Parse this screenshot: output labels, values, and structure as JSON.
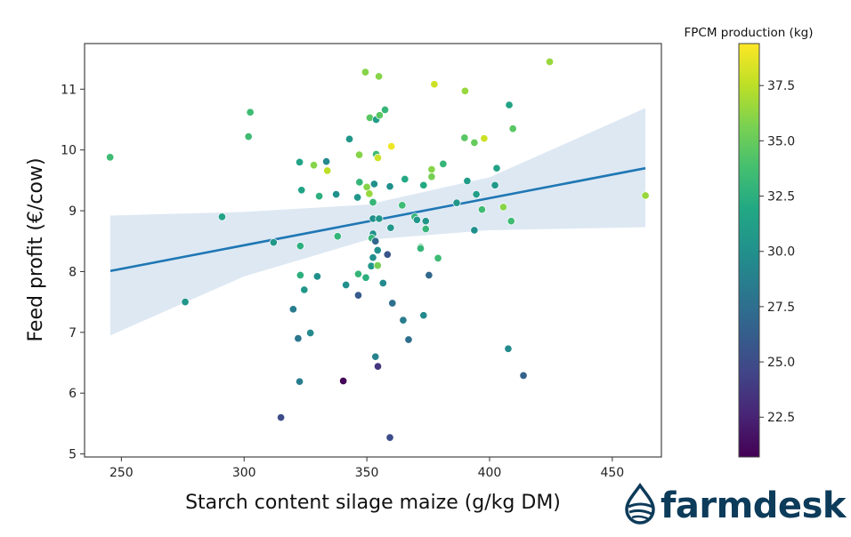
{
  "chart_data": {
    "type": "scatter",
    "title": "",
    "xlabel": "Starch content silage maize (g/kg DM)",
    "ylabel": "Feed profit (€/cow)",
    "xlim": [
      235,
      470
    ],
    "ylim": [
      4.95,
      11.75
    ],
    "x_ticks": [
      250,
      300,
      350,
      400,
      450
    ],
    "x_tick_labels": [
      "250",
      "300",
      "350",
      "400",
      "450"
    ],
    "y_ticks": [
      5,
      6,
      7,
      8,
      9,
      10,
      11
    ],
    "y_tick_labels": [
      "5",
      "6",
      "7",
      "8",
      "9",
      "10",
      "11"
    ],
    "grid": false,
    "colorbar": {
      "label": "FPCM production (kg)",
      "colormap": "viridis",
      "range": [
        20.7,
        39.4
      ],
      "ticks": [
        22.5,
        25.0,
        27.5,
        30.0,
        32.5,
        35.0,
        37.5
      ],
      "tick_labels": [
        "22.5",
        "25.0",
        "27.5",
        "30.0",
        "32.5",
        "35.0",
        "37.5"
      ]
    },
    "regression": {
      "color": "#1f77b4",
      "ci_color": "#dde8f3",
      "x": [
        245.5,
        463.5
      ],
      "y": [
        8.01,
        9.7
      ],
      "ci_x": [
        245.5,
        300,
        350,
        400,
        463.5
      ],
      "ci_upper": [
        8.92,
        8.98,
        9.1,
        9.55,
        10.69
      ],
      "ci_lower": [
        6.95,
        7.92,
        8.52,
        8.68,
        8.73
      ]
    },
    "points": [
      {
        "x": 245.4,
        "y": 9.88,
        "fpcm": 33.5
      },
      {
        "x": 276.0,
        "y": 7.5,
        "fpcm": 30.5
      },
      {
        "x": 291.0,
        "y": 8.9,
        "fpcm": 31.5
      },
      {
        "x": 302.5,
        "y": 10.62,
        "fpcm": 33.5
      },
      {
        "x": 301.8,
        "y": 10.22,
        "fpcm": 33.5
      },
      {
        "x": 312.0,
        "y": 8.48,
        "fpcm": 30.5
      },
      {
        "x": 315.0,
        "y": 5.6,
        "fpcm": 25.0
      },
      {
        "x": 320.0,
        "y": 7.38,
        "fpcm": 28.5
      },
      {
        "x": 322.0,
        "y": 6.9,
        "fpcm": 28.0
      },
      {
        "x": 322.6,
        "y": 6.19,
        "fpcm": 28.5
      },
      {
        "x": 322.6,
        "y": 9.8,
        "fpcm": 31.5
      },
      {
        "x": 323.4,
        "y": 9.34,
        "fpcm": 31.5
      },
      {
        "x": 322.9,
        "y": 8.42,
        "fpcm": 32.5
      },
      {
        "x": 322.9,
        "y": 7.94,
        "fpcm": 32.5
      },
      {
        "x": 324.5,
        "y": 7.7,
        "fpcm": 30.5
      },
      {
        "x": 327.0,
        "y": 6.99,
        "fpcm": 29.5
      },
      {
        "x": 328.4,
        "y": 9.75,
        "fpcm": 36.0
      },
      {
        "x": 329.8,
        "y": 7.92,
        "fpcm": 30.0
      },
      {
        "x": 330.6,
        "y": 9.24,
        "fpcm": 32.5
      },
      {
        "x": 333.5,
        "y": 9.81,
        "fpcm": 29.5
      },
      {
        "x": 333.9,
        "y": 9.66,
        "fpcm": 37.5
      },
      {
        "x": 337.5,
        "y": 9.27,
        "fpcm": 30.0
      },
      {
        "x": 338.1,
        "y": 8.58,
        "fpcm": 33.0
      },
      {
        "x": 340.4,
        "y": 6.2,
        "fpcm": 21.0
      },
      {
        "x": 341.5,
        "y": 7.78,
        "fpcm": 30.0
      },
      {
        "x": 342.9,
        "y": 10.18,
        "fpcm": 30.5
      },
      {
        "x": 346.2,
        "y": 9.22,
        "fpcm": 30.5
      },
      {
        "x": 346.5,
        "y": 7.61,
        "fpcm": 26.0
      },
      {
        "x": 346.5,
        "y": 7.96,
        "fpcm": 33.0
      },
      {
        "x": 346.9,
        "y": 9.92,
        "fpcm": 36.0
      },
      {
        "x": 347.0,
        "y": 9.47,
        "fpcm": 33.0
      },
      {
        "x": 349.4,
        "y": 11.28,
        "fpcm": 36.0
      },
      {
        "x": 349.6,
        "y": 7.9,
        "fpcm": 32.5
      },
      {
        "x": 350.0,
        "y": 9.39,
        "fpcm": 36.0
      },
      {
        "x": 351.0,
        "y": 9.28,
        "fpcm": 36.5
      },
      {
        "x": 351.2,
        "y": 10.53,
        "fpcm": 34.5
      },
      {
        "x": 351.8,
        "y": 8.09,
        "fpcm": 30.5
      },
      {
        "x": 352.5,
        "y": 8.23,
        "fpcm": 30.0
      },
      {
        "x": 352.5,
        "y": 8.87,
        "fpcm": 30.0
      },
      {
        "x": 352.5,
        "y": 8.62,
        "fpcm": 30.0
      },
      {
        "x": 352.0,
        "y": 8.55,
        "fpcm": 33.0
      },
      {
        "x": 352.5,
        "y": 9.14,
        "fpcm": 33.0
      },
      {
        "x": 353.0,
        "y": 9.44,
        "fpcm": 30.0
      },
      {
        "x": 353.5,
        "y": 8.5,
        "fpcm": 27.0
      },
      {
        "x": 353.5,
        "y": 6.6,
        "fpcm": 29.0
      },
      {
        "x": 353.8,
        "y": 10.5,
        "fpcm": 31.0
      },
      {
        "x": 353.8,
        "y": 9.93,
        "fpcm": 33.5
      },
      {
        "x": 354.4,
        "y": 8.1,
        "fpcm": 35.5
      },
      {
        "x": 354.4,
        "y": 8.35,
        "fpcm": 30.0
      },
      {
        "x": 354.5,
        "y": 6.44,
        "fpcm": 23.5
      },
      {
        "x": 354.5,
        "y": 9.87,
        "fpcm": 38.0
      },
      {
        "x": 354.9,
        "y": 11.21,
        "fpcm": 36.0
      },
      {
        "x": 355.0,
        "y": 8.87,
        "fpcm": 30.5
      },
      {
        "x": 355.2,
        "y": 10.57,
        "fpcm": 34.5
      },
      {
        "x": 356.6,
        "y": 7.81,
        "fpcm": 29.5
      },
      {
        "x": 357.4,
        "y": 10.66,
        "fpcm": 33.0
      },
      {
        "x": 358.4,
        "y": 8.28,
        "fpcm": 25.5
      },
      {
        "x": 359.4,
        "y": 5.27,
        "fpcm": 25.0
      },
      {
        "x": 359.4,
        "y": 9.4,
        "fpcm": 30.0
      },
      {
        "x": 359.7,
        "y": 8.72,
        "fpcm": 30.5
      },
      {
        "x": 360.0,
        "y": 10.06,
        "fpcm": 39.0
      },
      {
        "x": 360.4,
        "y": 7.48,
        "fpcm": 27.5
      },
      {
        "x": 364.4,
        "y": 9.09,
        "fpcm": 33.5
      },
      {
        "x": 364.8,
        "y": 7.2,
        "fpcm": 28.5
      },
      {
        "x": 365.5,
        "y": 9.52,
        "fpcm": 32.0
      },
      {
        "x": 367.0,
        "y": 6.88,
        "fpcm": 27.5
      },
      {
        "x": 369.5,
        "y": 8.9,
        "fpcm": 33.0
      },
      {
        "x": 370.4,
        "y": 8.85,
        "fpcm": 30.5
      },
      {
        "x": 371.9,
        "y": 8.4,
        "fpcm": 33.5
      },
      {
        "x": 371.9,
        "y": 8.38,
        "fpcm": 33.0
      },
      {
        "x": 373.1,
        "y": 7.28,
        "fpcm": 29.5
      },
      {
        "x": 373.1,
        "y": 9.42,
        "fpcm": 32.0
      },
      {
        "x": 374.0,
        "y": 8.83,
        "fpcm": 30.5
      },
      {
        "x": 374.0,
        "y": 8.7,
        "fpcm": 33.0
      },
      {
        "x": 375.3,
        "y": 7.94,
        "fpcm": 27.0
      },
      {
        "x": 376.4,
        "y": 9.68,
        "fpcm": 36.0
      },
      {
        "x": 376.4,
        "y": 9.56,
        "fpcm": 35.5
      },
      {
        "x": 377.5,
        "y": 11.08,
        "fpcm": 38.0
      },
      {
        "x": 379.0,
        "y": 8.22,
        "fpcm": 33.5
      },
      {
        "x": 381.1,
        "y": 9.77,
        "fpcm": 33.0
      },
      {
        "x": 386.6,
        "y": 9.13,
        "fpcm": 30.5
      },
      {
        "x": 389.8,
        "y": 10.2,
        "fpcm": 34.5
      },
      {
        "x": 390.0,
        "y": 10.97,
        "fpcm": 36.5
      },
      {
        "x": 390.9,
        "y": 9.49,
        "fpcm": 31.0
      },
      {
        "x": 393.8,
        "y": 10.12,
        "fpcm": 35.0
      },
      {
        "x": 393.8,
        "y": 8.68,
        "fpcm": 30.0
      },
      {
        "x": 394.6,
        "y": 9.27,
        "fpcm": 31.0
      },
      {
        "x": 396.9,
        "y": 9.02,
        "fpcm": 33.5
      },
      {
        "x": 397.8,
        "y": 10.19,
        "fpcm": 38.0
      },
      {
        "x": 402.2,
        "y": 9.42,
        "fpcm": 30.5
      },
      {
        "x": 402.9,
        "y": 9.7,
        "fpcm": 31.5
      },
      {
        "x": 405.6,
        "y": 9.06,
        "fpcm": 36.0
      },
      {
        "x": 407.6,
        "y": 6.73,
        "fpcm": 29.5
      },
      {
        "x": 408.0,
        "y": 10.74,
        "fpcm": 31.5
      },
      {
        "x": 408.8,
        "y": 8.83,
        "fpcm": 33.5
      },
      {
        "x": 409.5,
        "y": 10.35,
        "fpcm": 34.5
      },
      {
        "x": 413.8,
        "y": 6.29,
        "fpcm": 26.5
      },
      {
        "x": 424.5,
        "y": 11.45,
        "fpcm": 36.5
      },
      {
        "x": 463.5,
        "y": 9.25,
        "fpcm": 36.5
      }
    ]
  },
  "logo": {
    "text": "farmdesk",
    "color": "#0d3b5a"
  }
}
